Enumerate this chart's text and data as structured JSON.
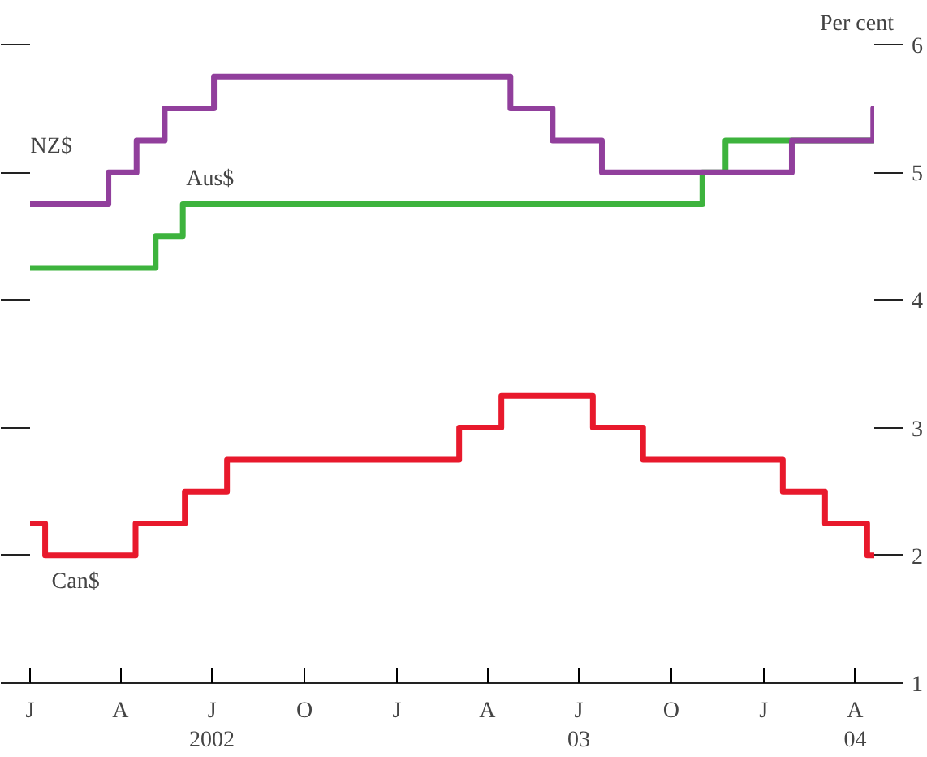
{
  "chart_data": {
    "type": "step",
    "ylabel": "Per cent",
    "xlim": [
      "2002-01-01",
      "2004-04-20"
    ],
    "xticks": [
      {
        "value": "2002-01-01",
        "label": "J"
      },
      {
        "value": "2002-04-01",
        "label": "A"
      },
      {
        "value": "2002-07-01",
        "label": "J\n2002"
      },
      {
        "value": "2002-10-01",
        "label": "O"
      },
      {
        "value": "2003-01-01",
        "label": "J"
      },
      {
        "value": "2003-04-01",
        "label": "A"
      },
      {
        "value": "2003-07-01",
        "label": "J\n03"
      },
      {
        "value": "2003-10-01",
        "label": "O"
      },
      {
        "value": "2004-01-01",
        "label": "J"
      },
      {
        "value": "2004-04-01",
        "label": "A\n04"
      }
    ],
    "ylim": [
      1,
      6
    ],
    "yticks": [
      1,
      2,
      3,
      4,
      5,
      6
    ],
    "grid": false,
    "line_style": "solid",
    "series": [
      {
        "name": "Aus$",
        "color": "#3db33d",
        "x": [
          "2002-01-01",
          "2002-05-06",
          "2002-06-02",
          "2003-11-01",
          "2003-11-24",
          "2004-04-20"
        ],
        "values": [
          4.25,
          4.5,
          4.75,
          5,
          5.25,
          5.25
        ]
      },
      {
        "name": "NZ$",
        "color": "#913f9c",
        "x": [
          "2002-01-01",
          "2002-03-20",
          "2002-04-17",
          "2002-05-15",
          "2002-07-03",
          "2003-04-24",
          "2003-06-05",
          "2003-07-24",
          "2004-01-29",
          "2004-04-19",
          "2004-04-20"
        ],
        "values": [
          4.75,
          5,
          5.25,
          5.5,
          5.75,
          5.5,
          5.25,
          5,
          5.25,
          5.5,
          5.5
        ]
      },
      {
        "name": "Can$",
        "color": "#e8192c",
        "x": [
          "2002-01-01",
          "2002-01-16",
          "2002-04-16",
          "2002-06-04",
          "2002-07-16",
          "2003-03-04",
          "2003-04-15",
          "2003-07-15",
          "2003-09-03",
          "2004-01-20",
          "2004-03-02",
          "2004-04-13",
          "2004-04-20"
        ],
        "values": [
          2.25,
          2,
          2.25,
          2.5,
          2.75,
          3,
          3.25,
          3,
          2.75,
          2.5,
          2.25,
          2,
          2
        ]
      }
    ]
  }
}
